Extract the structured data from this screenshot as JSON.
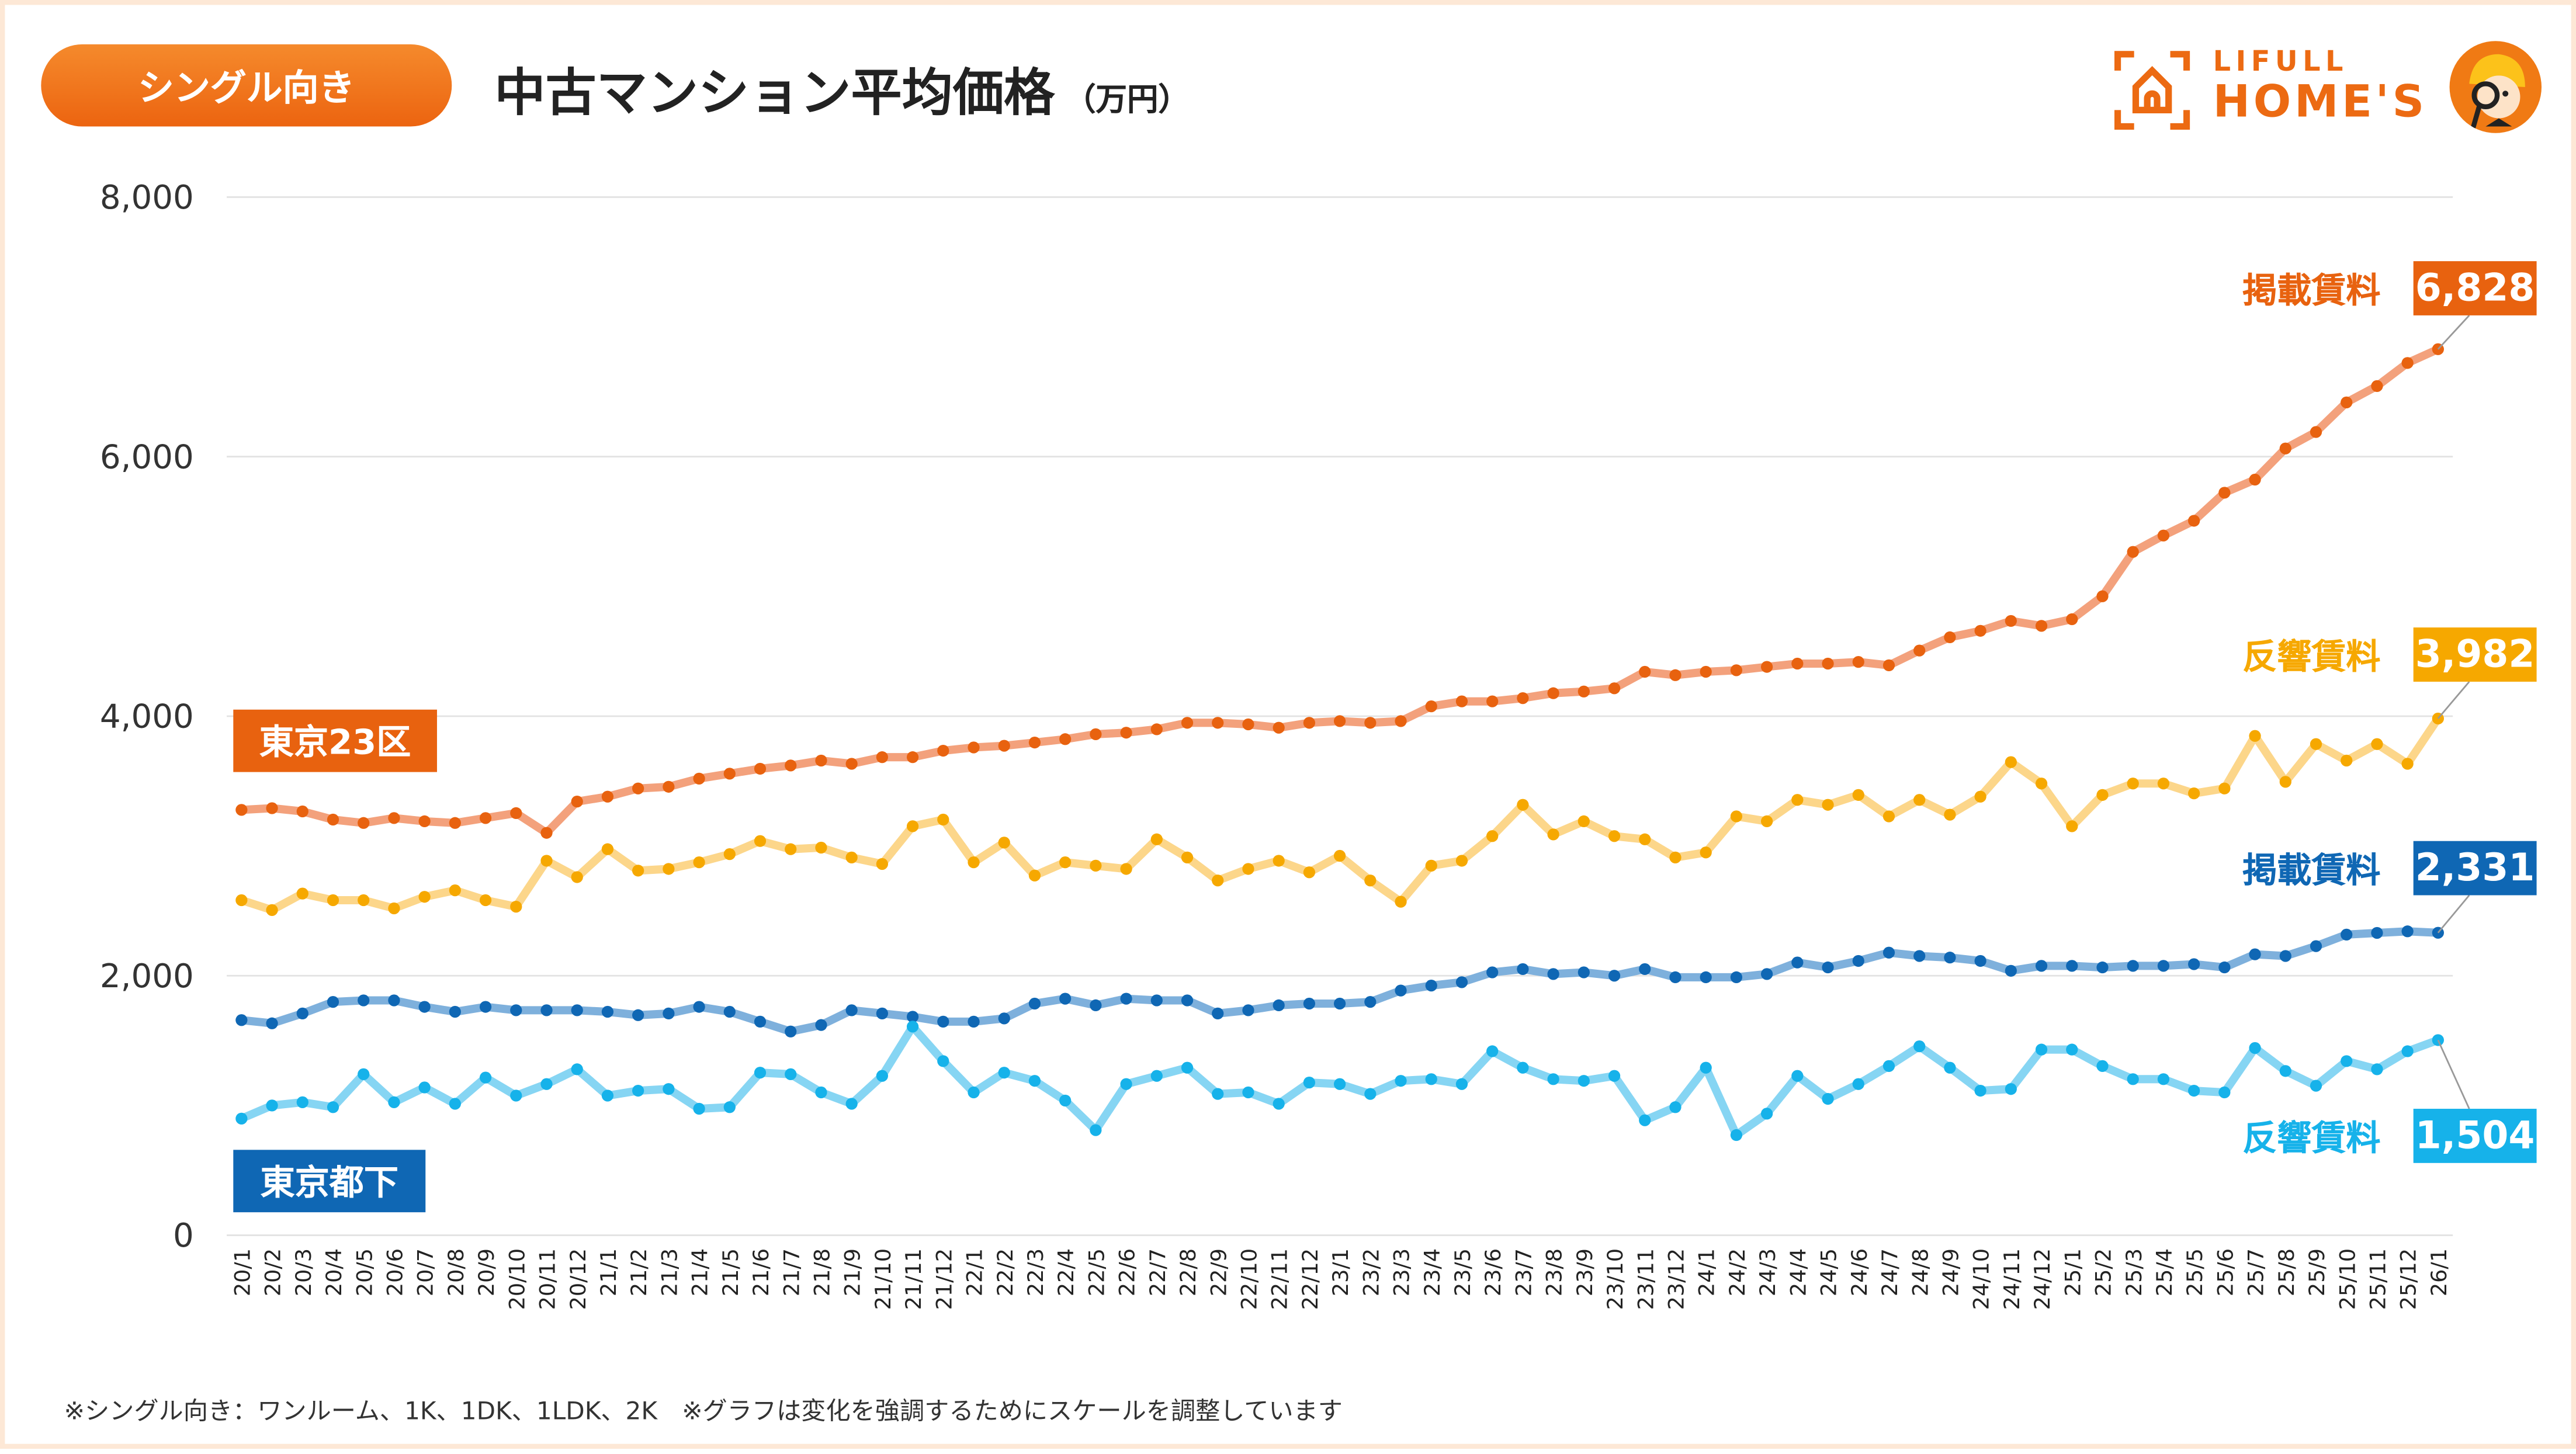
{
  "header": {
    "badge": "シングル向き",
    "title": "中古マンション平均価格",
    "unit": "（万円）",
    "logo_top": "LIFULL",
    "logo_bottom": "HOME'S"
  },
  "footnote": "※シングル向き：ワンルーム、1K、1DK、1LDK、2K　※グラフは変化を強調するためにスケールを調整しています",
  "colors": {
    "tokyo23_listing": "#e8620f",
    "tokyo23_response": "#f6a800",
    "tama_listing": "#0f67b4",
    "tama_response": "#16b2ea"
  },
  "region_labels": {
    "tokyo23": "東京23区",
    "tama": "東京都下"
  },
  "chart_data": {
    "type": "line",
    "title": "中古マンション平均価格（万円）",
    "xlabel": "",
    "ylabel": "",
    "ylim": [
      0,
      8000
    ],
    "yticks": [
      0,
      2000,
      4000,
      6000,
      8000
    ],
    "ytick_labels": [
      "0",
      "2,000",
      "4,000",
      "6,000",
      "8,000"
    ],
    "grid": true,
    "x": [
      "20/1",
      "20/2",
      "20/3",
      "20/4",
      "20/5",
      "20/6",
      "20/7",
      "20/8",
      "20/9",
      "20/10",
      "20/11",
      "20/12",
      "21/1",
      "21/2",
      "21/3",
      "21/4",
      "21/5",
      "21/6",
      "21/7",
      "21/8",
      "21/9",
      "21/10",
      "21/11",
      "21/12",
      "22/1",
      "22/2",
      "22/3",
      "22/4",
      "22/5",
      "22/6",
      "22/7",
      "22/8",
      "22/9",
      "22/10",
      "22/11",
      "22/12",
      "23/1",
      "23/2",
      "23/3",
      "23/4",
      "23/5",
      "23/6",
      "23/7",
      "23/8",
      "23/9",
      "23/10",
      "23/11",
      "23/12",
      "24/1",
      "24/2",
      "24/3",
      "24/4",
      "24/5",
      "24/6",
      "24/7",
      "24/8",
      "24/9",
      "24/10",
      "24/11",
      "24/12",
      "25/1",
      "25/2",
      "25/3",
      "25/4",
      "25/5",
      "25/6",
      "25/7",
      "25/8",
      "25/9",
      "25/10",
      "25/11",
      "25/12",
      "26/1"
    ],
    "series": [
      {
        "name": "掲載賃料",
        "region": "東京23区",
        "end_label": "6,828",
        "color": "#e8620f",
        "line_color": "#f3a17c",
        "values": [
          3278,
          3291,
          3266,
          3203,
          3177,
          3215,
          3190,
          3177,
          3215,
          3253,
          3101,
          3342,
          3380,
          3443,
          3456,
          3519,
          3557,
          3595,
          3620,
          3658,
          3633,
          3684,
          3684,
          3734,
          3759,
          3772,
          3797,
          3823,
          3861,
          3873,
          3899,
          3949,
          3949,
          3937,
          3911,
          3949,
          3962,
          3949,
          3962,
          4076,
          4114,
          4114,
          4139,
          4177,
          4190,
          4215,
          4342,
          4316,
          4342,
          4354,
          4380,
          4405,
          4405,
          4418,
          4392,
          4506,
          4608,
          4658,
          4734,
          4696,
          4747,
          4924,
          5266,
          5392,
          5506,
          5722,
          5823,
          6063,
          6190,
          6418,
          6544,
          6722,
          6828
        ]
      },
      {
        "name": "反響賃料",
        "region": "東京23区",
        "end_label": "3,982",
        "color": "#f6a800",
        "line_color": "#fcd68a",
        "values": [
          2582,
          2506,
          2633,
          2582,
          2582,
          2519,
          2608,
          2658,
          2582,
          2532,
          2886,
          2760,
          2975,
          2810,
          2823,
          2874,
          2937,
          3038,
          2975,
          2987,
          2911,
          2861,
          3152,
          3203,
          2874,
          3026,
          2772,
          2874,
          2848,
          2823,
          3051,
          2911,
          2734,
          2823,
          2886,
          2797,
          2924,
          2734,
          2570,
          2848,
          2886,
          3076,
          3317,
          3089,
          3190,
          3076,
          3051,
          2911,
          2950,
          3228,
          3190,
          3355,
          3317,
          3393,
          3228,
          3355,
          3241,
          3380,
          3646,
          3481,
          3152,
          3393,
          3481,
          3481,
          3405,
          3443,
          3848,
          3494,
          3785,
          3658,
          3785,
          3633,
          3982
        ]
      },
      {
        "name": "掲載賃料",
        "region": "東京都下",
        "end_label": "2,331",
        "color": "#0f67b4",
        "line_color": "#7eb0dc",
        "values": [
          1658,
          1633,
          1709,
          1798,
          1810,
          1810,
          1760,
          1722,
          1760,
          1734,
          1734,
          1734,
          1722,
          1696,
          1709,
          1760,
          1722,
          1646,
          1570,
          1620,
          1734,
          1709,
          1684,
          1646,
          1646,
          1671,
          1785,
          1823,
          1772,
          1823,
          1810,
          1810,
          1709,
          1734,
          1772,
          1785,
          1785,
          1798,
          1886,
          1924,
          1950,
          2026,
          2051,
          2013,
          2026,
          2000,
          2051,
          1988,
          1988,
          1988,
          2013,
          2102,
          2064,
          2114,
          2178,
          2152,
          2140,
          2114,
          2038,
          2076,
          2076,
          2064,
          2076,
          2076,
          2089,
          2064,
          2165,
          2152,
          2228,
          2317,
          2330,
          2342,
          2331
        ]
      },
      {
        "name": "反響賃料",
        "region": "東京都下",
        "end_label": "1,504",
        "color": "#16b2ea",
        "line_color": "#86d5f3",
        "values": [
          899,
          1000,
          1025,
          987,
          1241,
          1025,
          1139,
          1013,
          1215,
          1076,
          1165,
          1279,
          1076,
          1114,
          1127,
          975,
          987,
          1253,
          1241,
          1101,
          1013,
          1228,
          1608,
          1342,
          1101,
          1253,
          1190,
          1038,
          810,
          1165,
          1228,
          1291,
          1089,
          1101,
          1013,
          1177,
          1165,
          1089,
          1190,
          1203,
          1165,
          1418,
          1291,
          1203,
          1190,
          1228,
          886,
          987,
          1291,
          772,
          937,
          1228,
          1051,
          1165,
          1304,
          1456,
          1291,
          1114,
          1127,
          1431,
          1431,
          1304,
          1203,
          1203,
          1114,
          1101,
          1443,
          1266,
          1152,
          1342,
          1279,
          1418,
          1504
        ]
      }
    ]
  }
}
